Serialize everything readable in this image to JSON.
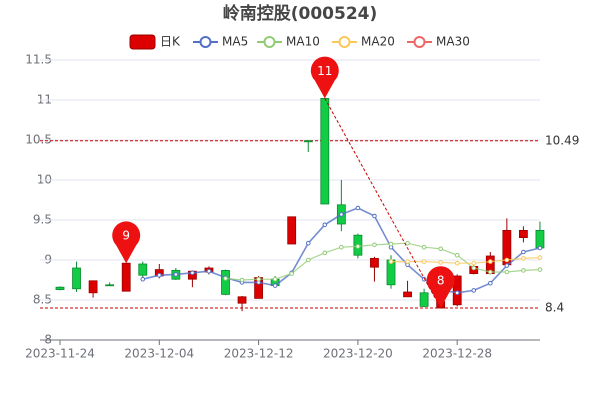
{
  "chart_data": {
    "type": "candlestick",
    "title": "岭南控股(000524)",
    "categories": [
      "2023-11-24",
      null,
      null,
      null,
      null,
      null,
      "2023-12-04",
      null,
      null,
      null,
      null,
      null,
      "2023-12-12",
      null,
      null,
      null,
      null,
      null,
      "2023-12-20",
      null,
      null,
      null,
      null,
      null,
      "2023-12-28",
      null,
      null,
      null,
      null,
      null
    ],
    "candles": {
      "name": "日K",
      "up_color": "#dd0000",
      "down_color": "#11cc44",
      "open": [
        8.66,
        8.9,
        8.59,
        8.69,
        8.61,
        8.95,
        8.8,
        8.87,
        8.76,
        8.85,
        8.87,
        8.46,
        8.52,
        8.76,
        9.2,
        10.49,
        11.02,
        9.69,
        9.31,
        8.91,
        9.0,
        8.54,
        8.59,
        8.4,
        8.44,
        8.83,
        8.83,
        8.94,
        9.28,
        9.37
      ],
      "close": [
        8.63,
        8.64,
        8.74,
        8.68,
        8.96,
        8.81,
        8.88,
        8.76,
        8.86,
        8.9,
        8.57,
        8.54,
        8.78,
        8.68,
        9.54,
        10.48,
        9.7,
        9.45,
        9.06,
        9.02,
        8.69,
        8.6,
        8.42,
        8.48,
        8.8,
        8.92,
        9.05,
        9.37,
        9.37,
        9.15
      ],
      "high": [
        8.67,
        8.98,
        8.74,
        8.72,
        8.96,
        8.98,
        8.95,
        8.9,
        8.87,
        8.92,
        8.88,
        8.55,
        8.8,
        8.8,
        9.54,
        10.5,
        11.02,
        10.0,
        9.33,
        9.04,
        9.06,
        8.74,
        8.64,
        8.56,
        8.82,
        8.95,
        9.1,
        9.52,
        9.42,
        9.48
      ],
      "low": [
        8.62,
        8.6,
        8.53,
        8.68,
        8.61,
        8.78,
        8.77,
        8.75,
        8.66,
        8.82,
        8.56,
        8.36,
        8.52,
        8.66,
        9.2,
        10.35,
        9.7,
        9.36,
        9.02,
        8.73,
        8.64,
        8.54,
        8.41,
        8.4,
        8.42,
        8.82,
        8.82,
        8.92,
        9.22,
        9.13
      ]
    },
    "series": [
      {
        "name": "MA5",
        "color": "#5470c6",
        "values": [
          null,
          null,
          null,
          null,
          null,
          8.76,
          8.81,
          8.82,
          8.84,
          8.86,
          8.78,
          8.72,
          8.72,
          8.68,
          8.84,
          9.21,
          9.44,
          9.57,
          9.65,
          9.55,
          9.16,
          8.94,
          8.76,
          8.63,
          8.59,
          8.62,
          8.71,
          8.93,
          9.1,
          9.15
        ]
      },
      {
        "name": "MA10",
        "color": "#91cc75",
        "values": [
          null,
          null,
          null,
          null,
          null,
          null,
          null,
          null,
          null,
          null,
          8.77,
          8.75,
          8.76,
          8.76,
          8.83,
          9.0,
          9.09,
          9.16,
          9.17,
          9.19,
          9.2,
          9.21,
          9.16,
          9.14,
          9.06,
          8.9,
          8.85,
          8.85,
          8.87,
          8.88
        ]
      },
      {
        "name": "MA20",
        "color": "#fac858",
        "values": [
          null,
          null,
          null,
          null,
          null,
          null,
          null,
          null,
          null,
          null,
          null,
          null,
          null,
          null,
          null,
          null,
          null,
          null,
          null,
          null,
          8.98,
          8.98,
          8.98,
          8.97,
          8.96,
          8.96,
          8.98,
          9.0,
          9.02,
          9.03
        ]
      },
      {
        "name": "MA30",
        "color": "#ee6666",
        "values": [
          null,
          null,
          null,
          null,
          null,
          null,
          null,
          null,
          null,
          null,
          null,
          null,
          null,
          null,
          null,
          null,
          null,
          null,
          null,
          null,
          null,
          null,
          null,
          null,
          null,
          null,
          null,
          null,
          null,
          null
        ]
      }
    ],
    "ylim": [
      8,
      11.5
    ],
    "yticks": [
      8,
      8.5,
      9,
      9.5,
      10,
      10.5,
      11,
      11.5
    ],
    "hlines": [
      10.49,
      8.4
    ],
    "markers": [
      {
        "value": 11.02,
        "label": "11"
      },
      {
        "value": 8.96,
        "label": "9"
      },
      {
        "value": 8.4,
        "label": "8"
      }
    ],
    "grid": true
  }
}
